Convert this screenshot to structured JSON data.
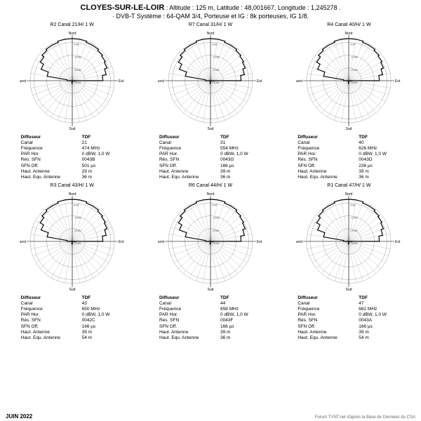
{
  "header": {
    "title": "CLOYES-SUR-LE-LOIR",
    "subtitle1": ": Altitude : 125 m,  Latitude : 48,001667,  Longitude : 1,245278 .",
    "subtitle2": "· DVB-T  Système : 64-QAM 3/4,  Porteuse et IG : 8k porteuses, IG 1/8."
  },
  "footer": {
    "date": "JUIN  2022",
    "credit": "Forum TVNT.net d'après la Base de Données du CSA"
  },
  "style": {
    "bg": "#ffffff",
    "ring_color": "#888888",
    "axis_color": "#000000",
    "pattern_color": "#000000",
    "pattern_width": 1.2,
    "rings_db": [
      -30,
      -20,
      -10,
      0,
      3
    ],
    "ring_labels": [
      "-30dB",
      "-20dB",
      "-10dB",
      "0dB"
    ],
    "n_angles": 36,
    "compass": {
      "n": "Nord",
      "s": "Sud",
      "e": "Est",
      "w": "Ouest"
    }
  },
  "info_labels": [
    "Diffuseur",
    "Canal",
    "Fréquence",
    "PAR Hor.",
    "Rés. SFN",
    "SFN Off.",
    "Haut. Antenne",
    "Haut. Equ. Antenne"
  ],
  "cells": [
    {
      "title": "R2  Canal 21/H/  1 W",
      "vals": [
        "TDF",
        "21",
        "474 MHz",
        "0 dBW, 1,0 W",
        "0043B",
        "501 µs",
        "29 m",
        "36 m"
      ],
      "pattern_db": [
        3,
        3,
        2,
        2,
        1,
        0,
        -1,
        -3,
        -6,
        -28,
        -30,
        -30,
        -30,
        -30,
        -30,
        -30,
        -30,
        -30,
        -28,
        -30,
        -30,
        -30,
        -30,
        -30,
        -30,
        -30,
        -30,
        -26,
        -10,
        -4,
        -1,
        1,
        2,
        2,
        3,
        3
      ]
    },
    {
      "title": "R7  Canal 31/H/  1 W",
      "vals": [
        "TDF",
        "31",
        "554 MHz",
        "0 dBW, 1,0 W",
        "0043G",
        "166 µs",
        "39 m",
        "36 m"
      ],
      "pattern_db": [
        3,
        3,
        2,
        2,
        1,
        0,
        -1,
        -3,
        -6,
        -28,
        -30,
        -30,
        -30,
        -30,
        -30,
        -30,
        -30,
        -30,
        -28,
        -30,
        -30,
        -30,
        -30,
        -30,
        -30,
        -30,
        -30,
        -26,
        -10,
        -4,
        -1,
        1,
        2,
        2,
        3,
        3
      ]
    },
    {
      "title": "R4  Canal 40/H/  1 W",
      "vals": [
        "TDF",
        "40",
        "626 MHz",
        "0 dBW, 1,0 W",
        "0043D",
        "236 µs",
        "39 m",
        "36 m"
      ],
      "pattern_db": [
        3,
        3,
        2,
        2,
        1,
        0,
        -1,
        -3,
        -6,
        -28,
        -30,
        -30,
        -30,
        -30,
        -30,
        -30,
        -30,
        -30,
        -28,
        -30,
        -30,
        -30,
        -30,
        -30,
        -30,
        -30,
        -30,
        -26,
        -10,
        -4,
        -1,
        1,
        2,
        2,
        3,
        3
      ]
    },
    {
      "title": "R3  Canal 43/H/  1 W",
      "vals": [
        "TDF",
        "43",
        "650 MHz",
        "0 dBW, 1,0 W",
        "0042C",
        "166 µs",
        "39 m",
        "54 m"
      ],
      "pattern_db": [
        3,
        3,
        2,
        2,
        1,
        0,
        -1,
        -3,
        -6,
        -28,
        -30,
        -30,
        -30,
        -30,
        -30,
        -30,
        -30,
        -30,
        -28,
        -30,
        -30,
        -30,
        -30,
        -30,
        -30,
        -30,
        -30,
        -26,
        -10,
        -4,
        -1,
        1,
        2,
        2,
        3,
        3
      ]
    },
    {
      "title": "R6  Canal 44/H/  1 W",
      "vals": [
        "TDF",
        "44",
        "658 MHz",
        "0 dBW, 1,0 W",
        "0043F",
        "166 µs",
        "39 m",
        "36 m"
      ],
      "pattern_db": [
        3,
        3,
        2,
        2,
        1,
        0,
        -1,
        -3,
        -6,
        -28,
        -30,
        -30,
        -30,
        -30,
        -30,
        -30,
        -30,
        -30,
        -28,
        -30,
        -30,
        -30,
        -30,
        -30,
        -30,
        -30,
        -30,
        -26,
        -10,
        -4,
        -1,
        1,
        2,
        2,
        3,
        3
      ]
    },
    {
      "title": "R1  Canal 47/H/  1 W",
      "vals": [
        "TDF",
        "47",
        "682 MHz",
        "0 dBW, 1,0 W",
        "0043A",
        "166 µs",
        "39 m",
        "54 m"
      ],
      "pattern_db": [
        3,
        3,
        2,
        2,
        1,
        0,
        -1,
        -3,
        -6,
        -28,
        -30,
        -30,
        -30,
        -30,
        -30,
        -30,
        -30,
        -30,
        -28,
        -30,
        -30,
        -30,
        -30,
        -30,
        -30,
        -30,
        -30,
        -26,
        -10,
        -4,
        -1,
        1,
        2,
        2,
        3,
        3
      ]
    }
  ]
}
